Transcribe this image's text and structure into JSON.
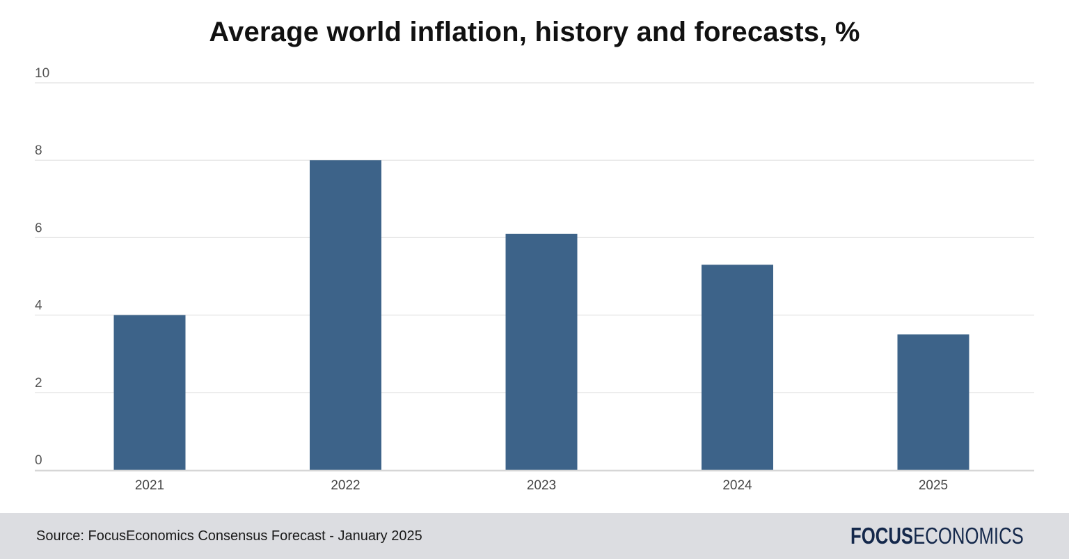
{
  "chart_data": {
    "type": "bar",
    "title": "Average world inflation, history and forecasts, %",
    "categories": [
      "2021",
      "2022",
      "2023",
      "2024",
      "2025"
    ],
    "values": [
      4.0,
      8.0,
      6.1,
      5.3,
      3.5
    ],
    "ylim": [
      0,
      10
    ],
    "yticks": [
      "0",
      "2",
      "4",
      "6",
      "8",
      "10"
    ],
    "xlabel": "",
    "ylabel": "",
    "grid": true,
    "bar_color": "#3d6389"
  },
  "footer": {
    "source": "Source: FocusEconomics Consensus Forecast - January 2025",
    "logo_bold": "FOCUS",
    "logo_light": "ECONOMICS"
  }
}
